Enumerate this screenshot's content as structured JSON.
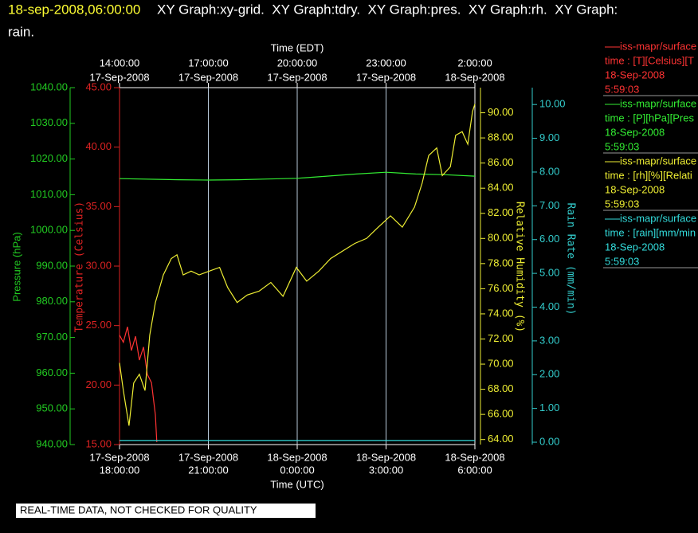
{
  "header": {
    "timestamp": "18-sep-2008,06:00:00",
    "graphs": "XY Graph:xy-grid.  XY Graph:tdry.  XY Graph:pres.  XY Graph:rh.  XY Graph:",
    "wrap": "rain."
  },
  "footer": "REAL-TIME DATA, NOT CHECKED FOR QUALITY",
  "chart_data": {
    "type": "line",
    "grid": true,
    "x_label": "Time (UTC)",
    "x2_label": "Time (EDT)",
    "xlim": [
      0,
      12
    ],
    "xticks": [
      {
        "value": 0,
        "label": [
          "17-Sep-2008",
          "18:00:00"
        ]
      },
      {
        "value": 3,
        "label": [
          "17-Sep-2008",
          "21:00:00"
        ]
      },
      {
        "value": 6,
        "label": [
          "18-Sep-2008",
          "0:00:00"
        ]
      },
      {
        "value": 9,
        "label": [
          "18-Sep-2008",
          "3:00:00"
        ]
      },
      {
        "value": 12,
        "label": [
          "18-Sep-2008",
          "6:00:00"
        ]
      }
    ],
    "x2ticks": [
      {
        "value": 0,
        "label": [
          "14:00:00",
          "17-Sep-2008"
        ]
      },
      {
        "value": 3,
        "label": [
          "17:00:00",
          "17-Sep-2008"
        ]
      },
      {
        "value": 6,
        "label": [
          "20:00:00",
          "17-Sep-2008"
        ]
      },
      {
        "value": 9,
        "label": [
          "23:00:00",
          "17-Sep-2008"
        ]
      },
      {
        "value": 12,
        "label": [
          "2:00:00",
          "18-Sep-2008"
        ]
      }
    ],
    "y_axes": [
      {
        "label": "Pressure (hPa)",
        "color": "#22cc22",
        "lim": [
          940,
          1040
        ],
        "ticks": [
          {
            "value": 940,
            "label": "940.00"
          },
          {
            "value": 950,
            "label": "950.00"
          },
          {
            "value": 960,
            "label": "960.00"
          },
          {
            "value": 970,
            "label": "970.00"
          },
          {
            "value": 980,
            "label": "980.00"
          },
          {
            "value": 990,
            "label": "990.00"
          },
          {
            "value": 1000,
            "label": "1000.00"
          },
          {
            "value": 1010,
            "label": "1010.00"
          },
          {
            "value": 1020,
            "label": "1020.00"
          },
          {
            "value": 1030,
            "label": "1030.00"
          },
          {
            "value": 1040,
            "label": "1040.00"
          }
        ]
      },
      {
        "label": "Temperature (Celsius)",
        "color": "#dd2222",
        "lim": [
          15,
          45
        ],
        "ticks": [
          {
            "value": 15,
            "label": "15.00"
          },
          {
            "value": 20,
            "label": "20.00"
          },
          {
            "value": 25,
            "label": "25.00"
          },
          {
            "value": 30,
            "label": "30.00"
          },
          {
            "value": 35,
            "label": "35.00"
          },
          {
            "value": 40,
            "label": "40.00"
          },
          {
            "value": 45,
            "label": "45.00"
          }
        ]
      },
      {
        "label": "Relative Humidity (%)",
        "color": "#eeee33",
        "lim": [
          63.6,
          92
        ],
        "ticks": [
          {
            "value": 64,
            "label": "64.00"
          },
          {
            "value": 66,
            "label": "66.00"
          },
          {
            "value": 68,
            "label": "68.00"
          },
          {
            "value": 70,
            "label": "70.00"
          },
          {
            "value": 72,
            "label": "72.00"
          },
          {
            "value": 74,
            "label": "74.00"
          },
          {
            "value": 76,
            "label": "76.00"
          },
          {
            "value": 78,
            "label": "78.00"
          },
          {
            "value": 80,
            "label": "80.00"
          },
          {
            "value": 82,
            "label": "82.00"
          },
          {
            "value": 84,
            "label": "84.00"
          },
          {
            "value": 86,
            "label": "86.00"
          },
          {
            "value": 88,
            "label": "88.00"
          },
          {
            "value": 90,
            "label": "90.00"
          }
        ]
      },
      {
        "label": "Rain Rate (mm/min)",
        "color": "#33cccc",
        "lim": [
          -0.07,
          10.5
        ],
        "ticks": [
          {
            "value": 0,
            "label": "0.00"
          },
          {
            "value": 1,
            "label": "1.00"
          },
          {
            "value": 2,
            "label": "2.00"
          },
          {
            "value": 3,
            "label": "3.00"
          },
          {
            "value": 4,
            "label": "4.00"
          },
          {
            "value": 5,
            "label": "5.00"
          },
          {
            "value": 6,
            "label": "6.00"
          },
          {
            "value": 7,
            "label": "7.00"
          },
          {
            "value": 8,
            "label": "8.00"
          },
          {
            "value": 9,
            "label": "9.00"
          },
          {
            "value": 10,
            "label": "10.00"
          }
        ]
      }
    ],
    "series": [
      {
        "name": "iss-mapr/surface",
        "legend": [
          "time : [T][Celsius][T",
          "18-Sep-2008",
          "5:59:03"
        ],
        "color": "#ff3333",
        "axis": 1,
        "x": [
          0,
          0.13,
          0.27,
          0.4,
          0.54,
          0.67,
          0.81,
          0.94,
          1.08,
          1.21,
          1.26
        ],
        "values": [
          24.2,
          23.6,
          24.9,
          22.9,
          24.1,
          22.1,
          23.2,
          20.9,
          20.2,
          17.5,
          15.2
        ]
      },
      {
        "name": "iss-mapr/surface",
        "legend": [
          "time : [P][hPa][Pres",
          "18-Sep-2008",
          "5:59:03"
        ],
        "color": "#33ee33",
        "axis": 0,
        "x": [
          0,
          2,
          3,
          4,
          5,
          6,
          7,
          8,
          9,
          10,
          11,
          12
        ],
        "values": [
          1014.5,
          1014.2,
          1014.1,
          1014.2,
          1014.4,
          1014.6,
          1015.2,
          1015.8,
          1016.3,
          1015.8,
          1015.6,
          1015.2
        ]
      },
      {
        "name": "iss-mapr/surface",
        "legend": [
          "time : [rh][%][Relati",
          "18-Sep-2008",
          "5:59:03"
        ],
        "color": "#eeee33",
        "axis": 2,
        "x": [
          0,
          0.13,
          0.32,
          0.48,
          0.67,
          0.86,
          1.02,
          1.21,
          1.48,
          1.75,
          1.94,
          2.15,
          2.42,
          2.69,
          3.03,
          3.38,
          3.65,
          3.97,
          4.31,
          4.71,
          5.11,
          5.52,
          5.97,
          6.32,
          6.73,
          7.13,
          7.53,
          7.94,
          8.34,
          8.74,
          9.15,
          9.55,
          9.96,
          10.22,
          10.44,
          10.71,
          10.9,
          11.17,
          11.35,
          11.57,
          11.76,
          11.92,
          12
        ],
        "values": [
          70.1,
          67.9,
          65.1,
          68.5,
          69.2,
          67.9,
          72.3,
          74.9,
          77.1,
          78.4,
          78.7,
          77.1,
          77.4,
          77.1,
          77.4,
          77.7,
          76.1,
          74.9,
          75.5,
          75.8,
          76.5,
          75.4,
          77.7,
          76.6,
          77.4,
          78.4,
          79.0,
          79.6,
          80.0,
          80.9,
          81.8,
          80.9,
          82.5,
          84.4,
          86.6,
          87.2,
          85.0,
          85.7,
          88.2,
          88.5,
          87.5,
          90.1,
          90.7
        ]
      },
      {
        "name": "iss-mapr/surface",
        "legend": [
          "time : [rain][mm/min",
          "18-Sep-2008",
          "5:59:03"
        ],
        "color": "#33dddd",
        "axis": 3,
        "x": [
          0,
          12
        ],
        "values": [
          0.05,
          0.05
        ]
      }
    ]
  }
}
